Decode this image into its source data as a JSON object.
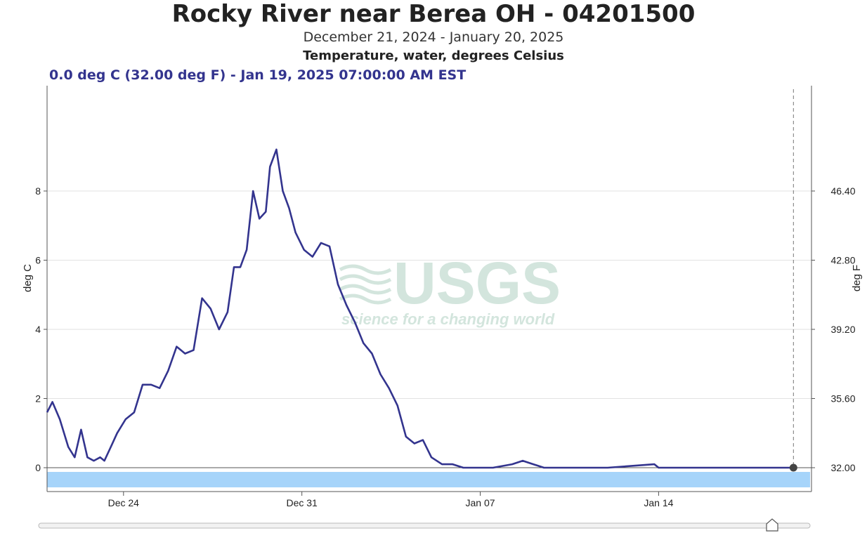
{
  "header": {
    "title": "Rocky River near Berea OH - 04201500",
    "date_range": "December 21, 2024 - January 20, 2025",
    "parameter": "Temperature, water, degrees Celsius",
    "readout": "0.0 deg C (32.00 deg F) - Jan 19, 2025 07:00:00 AM EST"
  },
  "watermark": {
    "logo": "USGS",
    "tagline": "science for a changing world"
  },
  "colors": {
    "series": "#33348e",
    "ice_band": "#a6d4fa",
    "grid": "#e2e2e2",
    "axis": "#555555",
    "watermark": "#cfe3da"
  },
  "chart_data": {
    "type": "line",
    "title": "Rocky River near Berea OH - 04201500",
    "ylabel": "deg C",
    "ylabel_right": "deg F",
    "ylim": [
      0,
      10
    ],
    "xlim": [
      "2024-12-21",
      "2025-01-20"
    ],
    "y_ticks": [
      "0",
      "2",
      "4",
      "6",
      "8"
    ],
    "y_ticks_right": [
      "32.00",
      "35.60",
      "39.20",
      "42.80",
      "46.40"
    ],
    "x_ticks": [
      "Dec 24",
      "Dec 31",
      "Jan 07",
      "Jan 14"
    ],
    "grid": true,
    "series": [
      {
        "x": [
          "2024-12-21T00:00",
          "2024-12-21T05:00",
          "2024-12-21T12:00",
          "2024-12-21T20:00",
          "2024-12-22T02:00",
          "2024-12-22T08:00",
          "2024-12-22T14:00",
          "2024-12-22T20:00",
          "2024-12-23T02:00",
          "2024-12-23T06:00",
          "2024-12-23T12:00",
          "2024-12-23T18:00",
          "2024-12-24T02:00",
          "2024-12-24T10:00",
          "2024-12-24T18:00",
          "2024-12-25T02:00",
          "2024-12-25T10:00",
          "2024-12-25T18:00",
          "2024-12-26T02:00",
          "2024-12-26T10:00",
          "2024-12-26T18:00",
          "2024-12-27T02:00",
          "2024-12-27T10:00",
          "2024-12-27T18:00",
          "2024-12-28T02:00",
          "2024-12-28T08:00",
          "2024-12-28T14:00",
          "2024-12-28T20:00",
          "2024-12-29T02:00",
          "2024-12-29T08:00",
          "2024-12-29T14:00",
          "2024-12-29T18:00",
          "2024-12-30T00:00",
          "2024-12-30T06:00",
          "2024-12-30T12:00",
          "2024-12-30T18:00",
          "2024-12-31T02:00",
          "2024-12-31T10:00",
          "2024-12-31T18:00",
          "2025-01-01T02:00",
          "2025-01-01T10:00",
          "2025-01-01T18:00",
          "2025-01-02T02:00",
          "2025-01-02T10:00",
          "2025-01-02T18:00",
          "2025-01-03T02:00",
          "2025-01-03T10:00",
          "2025-01-03T18:00",
          "2025-01-04T02:00",
          "2025-01-04T10:00",
          "2025-01-04T18:00",
          "2025-01-05T02:00",
          "2025-01-05T12:00",
          "2025-01-05T22:00",
          "2025-01-06T08:00",
          "2025-01-06T18:00",
          "2025-01-07T12:00",
          "2025-01-08T06:00",
          "2025-01-08T16:00",
          "2025-01-09T02:00",
          "2025-01-09T12:00",
          "2025-01-10T00:00",
          "2025-01-12T00:00",
          "2025-01-13T20:00",
          "2025-01-14T00:00",
          "2025-01-16T00:00",
          "2025-01-18T00:00",
          "2025-01-19T07:00"
        ],
        "y": [
          1.6,
          1.9,
          1.4,
          0.6,
          0.3,
          1.1,
          0.3,
          0.2,
          0.3,
          0.2,
          0.6,
          1.0,
          1.4,
          1.6,
          2.4,
          2.4,
          2.3,
          2.8,
          3.5,
          3.3,
          3.4,
          4.9,
          4.6,
          4.0,
          4.5,
          5.8,
          5.8,
          6.3,
          8.0,
          7.2,
          7.4,
          8.7,
          9.2,
          8.0,
          7.5,
          6.8,
          6.3,
          6.1,
          6.5,
          6.4,
          5.3,
          4.7,
          4.2,
          3.6,
          3.3,
          2.7,
          2.3,
          1.8,
          0.9,
          0.7,
          0.8,
          0.3,
          0.1,
          0.1,
          0.0,
          0.0,
          0.0,
          0.1,
          0.2,
          0.1,
          0.0,
          0.0,
          0.0,
          0.1,
          0.0,
          0.0,
          0.0,
          0.0
        ]
      }
    ],
    "highlight_point": {
      "x": "2025-01-19T07:00",
      "y": 0.0
    }
  }
}
